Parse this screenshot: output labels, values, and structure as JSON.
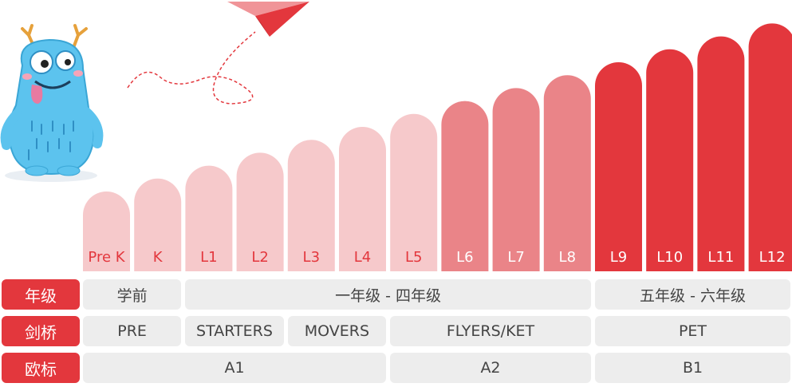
{
  "chart_data": {
    "type": "bar",
    "categories": [
      "Pre K",
      "K",
      "L1",
      "L2",
      "L3",
      "L4",
      "L5",
      "L6",
      "L7",
      "L8",
      "L9",
      "L10",
      "L11",
      "L12"
    ],
    "values": [
      1,
      2,
      3,
      4,
      5,
      6,
      7,
      8,
      9,
      10,
      11,
      12,
      13,
      14
    ],
    "colors": {
      "light": "#f6c9cb",
      "medium": "#ea8488",
      "dark": "#e3373d",
      "light_text": "#e3373d",
      "dark_text": "#ffffff"
    },
    "tiers": [
      "light",
      "light",
      "light",
      "light",
      "light",
      "light",
      "light",
      "medium",
      "medium",
      "medium",
      "dark",
      "dark",
      "dark",
      "dark"
    ]
  },
  "table": {
    "grade": {
      "header": "年级",
      "cells": [
        {
          "text": "学前",
          "span": [
            0,
            1
          ]
        },
        {
          "text": "一年级 - 四年级",
          "span": [
            2,
            9
          ]
        },
        {
          "text": "五年级 - 六年级",
          "span": [
            10,
            13
          ]
        }
      ]
    },
    "cambridge": {
      "header": "剑桥",
      "cells": [
        {
          "text": "PRE",
          "span": [
            0,
            1
          ]
        },
        {
          "text": "STARTERS",
          "span": [
            2,
            3
          ]
        },
        {
          "text": "MOVERS",
          "span": [
            4,
            5
          ]
        },
        {
          "text": "FLYERS/KET",
          "span": [
            6,
            9
          ]
        },
        {
          "text": "PET",
          "span": [
            10,
            13
          ]
        }
      ]
    },
    "cefr": {
      "header": "欧标",
      "cells": [
        {
          "text": "A1",
          "span": [
            0,
            5
          ]
        },
        {
          "text": "A2",
          "span": [
            6,
            9
          ]
        },
        {
          "text": "B1",
          "span": [
            10,
            13
          ]
        }
      ]
    }
  },
  "decor": {
    "mascot": "blue-furry-monster-mascot",
    "plane": "paper-plane-icon"
  }
}
